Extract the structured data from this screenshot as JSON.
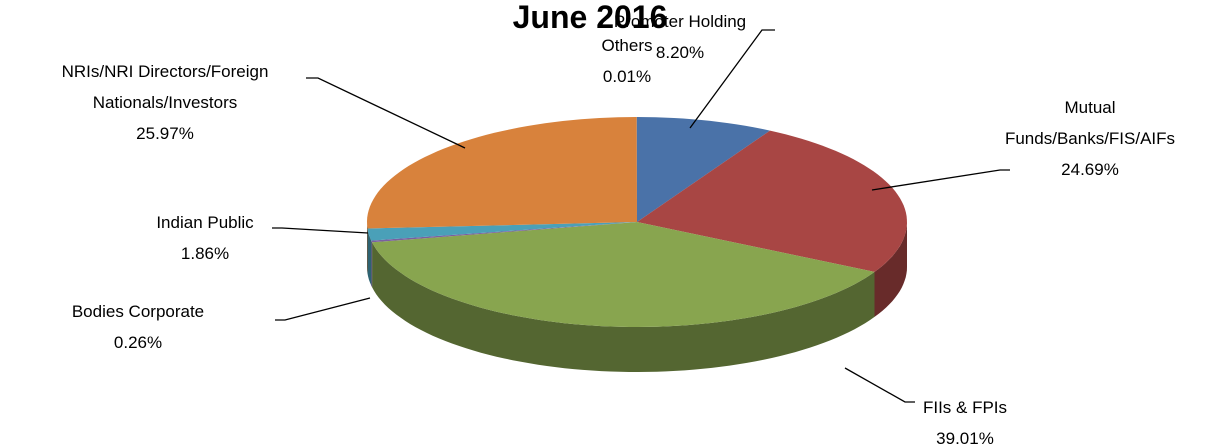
{
  "chart_data": {
    "type": "pie3d",
    "title": "June 2016",
    "categories": [
      "Promoter Holding",
      "Mutual Funds/Banks/FIS/AIFs",
      "FIIs & FPIs",
      "Bodies Corporate",
      "Indian Public",
      "NRIs/NRI Directors/Foreign Nationals/Investors",
      "Others"
    ],
    "values": [
      8.2,
      24.69,
      39.01,
      0.26,
      1.86,
      25.97,
      0.01
    ],
    "value_labels": [
      "8.20%",
      "24.69%",
      "39.01%",
      "0.26%",
      "1.86%",
      "25.97%",
      "0.01%"
    ],
    "colors": [
      "#4a72a8",
      "#a84644",
      "#88a54f",
      "#7a5fa0",
      "#4aa0b8",
      "#d8823c",
      "#4f81bd"
    ]
  }
}
